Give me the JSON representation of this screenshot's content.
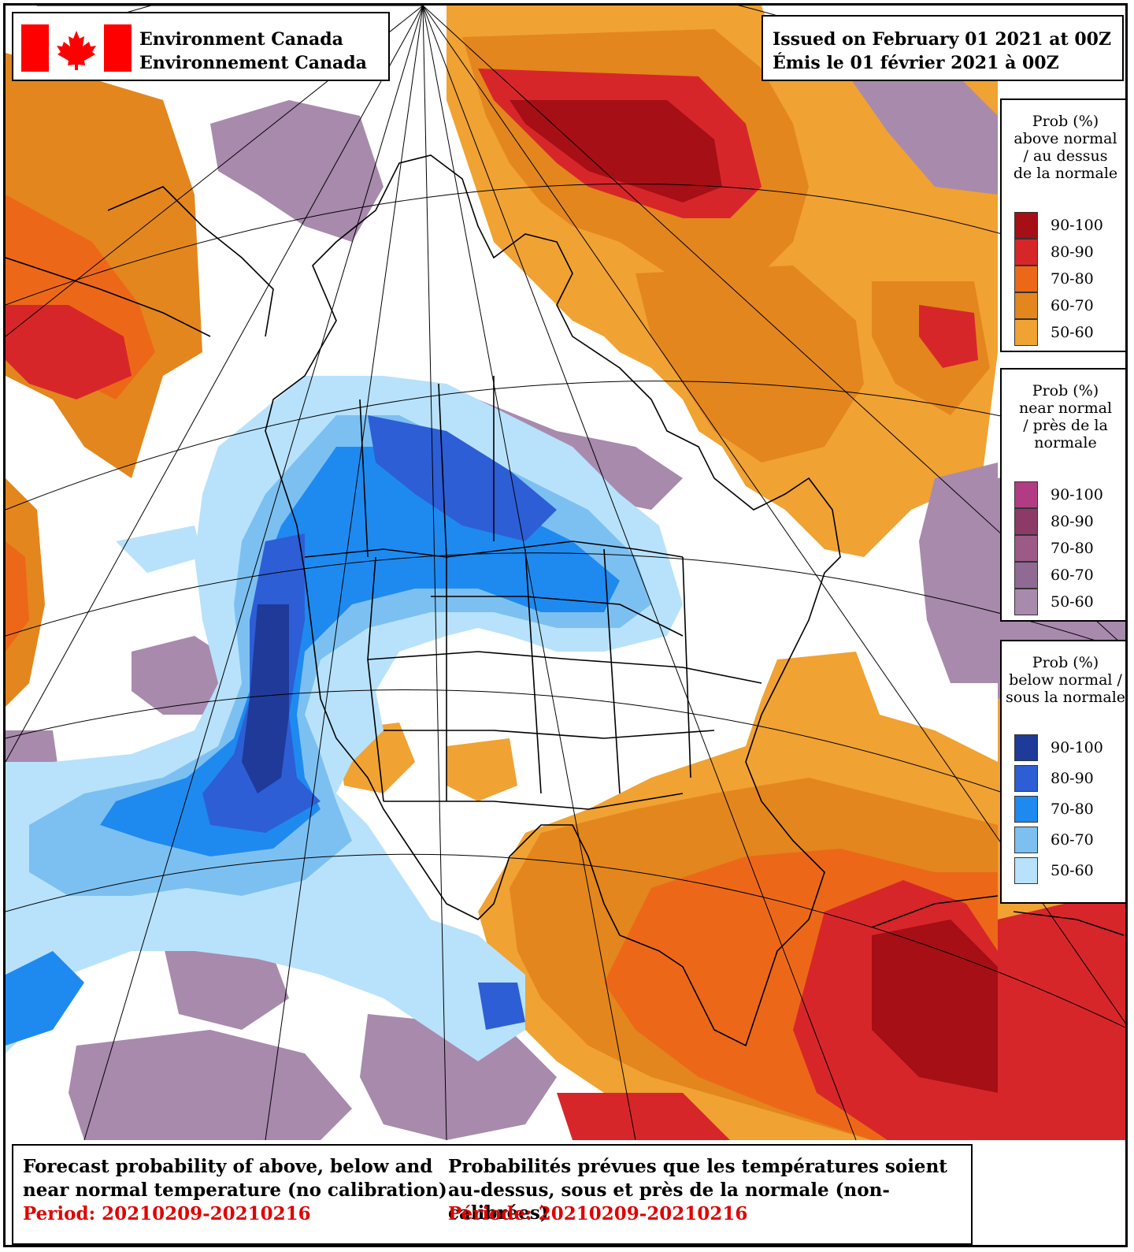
{
  "header": {
    "agency_en": "Environment Canada",
    "agency_fr": "Environnement Canada",
    "issued_en": "Issued on February 01 2021 at 00Z",
    "issued_fr": "Émis le 01 février 2021 à 00Z"
  },
  "legends": {
    "above": {
      "title_lines": [
        "Prob (%)",
        "above normal",
        "/ au dessus",
        "de la normale"
      ],
      "ranges": [
        "90-100",
        "80-90",
        "70-80",
        "60-70",
        "50-60"
      ],
      "colors": [
        "#a50f15",
        "#d7262a",
        "#ec6818",
        "#e3861d",
        "#f0a233"
      ]
    },
    "near": {
      "title_lines": [
        "Prob (%)",
        "near normal",
        "/ près de la",
        "normale"
      ],
      "ranges": [
        "90-100",
        "80-90",
        "70-80",
        "60-70",
        "50-60"
      ],
      "colors": [
        "#b23c83",
        "#8e3a66",
        "#9e5a87",
        "#8f6b94",
        "#a88aad"
      ]
    },
    "below": {
      "title_lines": [
        "Prob (%)",
        "below normal /",
        "sous la normale"
      ],
      "ranges": [
        "90-100",
        "80-90",
        "70-80",
        "60-70",
        "50-60"
      ],
      "colors": [
        "#1f3a99",
        "#2d5ed6",
        "#1e8af0",
        "#7cc0f2",
        "#b8e2fb"
      ]
    }
  },
  "footer": {
    "en_line1": "Forecast probability of above, below and",
    "en_line2": "near normal temperature (no calibration)",
    "en_period": "Period: 20210209-20210216",
    "fr_line1": "Probabilités prévues que les températures soient",
    "fr_line2": "au-dessus, sous et près de la normale (non-calibrées)",
    "fr_period": "Période: 20210209-20210216"
  }
}
